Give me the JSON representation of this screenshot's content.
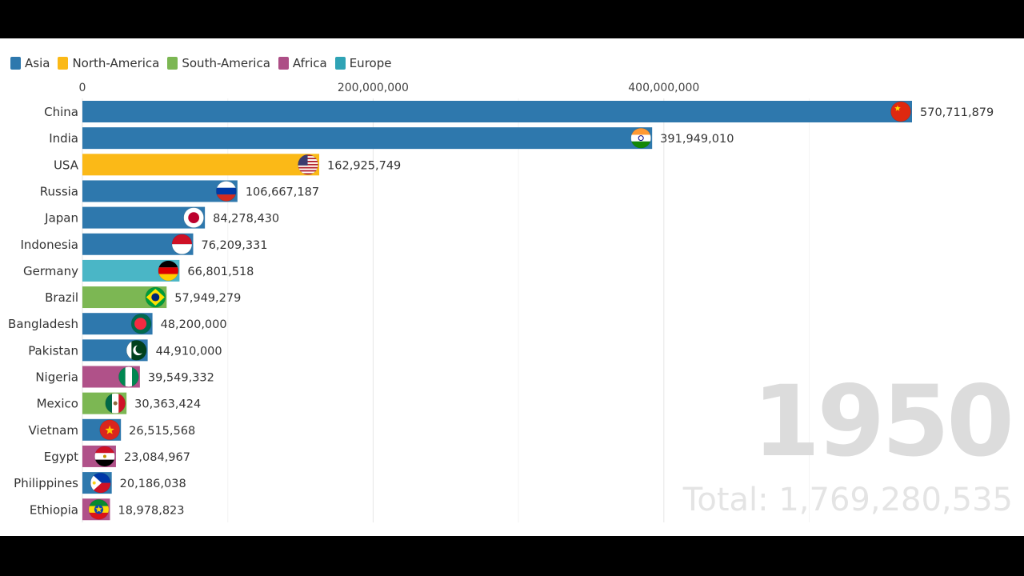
{
  "legend": [
    {
      "name": "Asia",
      "color": "#2e78ad"
    },
    {
      "name": "North-America",
      "color": "#fbb917"
    },
    {
      "name": "South-America",
      "color": "#7cb753"
    },
    {
      "name": "Africa",
      "color": "#ad4e86"
    },
    {
      "name": "Europe",
      "color": "#2fa3b5"
    }
  ],
  "year": "1950",
  "total_text": "Total: 1,769,280,535",
  "chart_data": {
    "type": "bar",
    "orientation": "horizontal",
    "xlim": [
      0,
      570711879
    ],
    "ticks": [
      {
        "value": 0,
        "label": "0"
      },
      {
        "value": 200000000,
        "label": "200,000,000"
      },
      {
        "value": 400000000,
        "label": "400,000,000"
      }
    ],
    "grid": true,
    "legend_position": "top-left",
    "bars": [
      {
        "name": "China",
        "value": 570711879,
        "label": "570,711,879",
        "region": "Asia",
        "color": "#2e78ad",
        "flag": "china-flag-icon"
      },
      {
        "name": "India",
        "value": 391949010,
        "label": "391,949,010",
        "region": "Asia",
        "color": "#2e78ad",
        "flag": "india-flag-icon"
      },
      {
        "name": "USA",
        "value": 162925749,
        "label": "162,925,749",
        "region": "North-America",
        "color": "#fbb917",
        "flag": "usa-flag-icon"
      },
      {
        "name": "Russia",
        "value": 106667187,
        "label": "106,667,187",
        "region": "Asia",
        "color": "#2e78ad",
        "flag": "russia-flag-icon"
      },
      {
        "name": "Japan",
        "value": 84278430,
        "label": "84,278,430",
        "region": "Asia",
        "color": "#2e78ad",
        "flag": "japan-flag-icon"
      },
      {
        "name": "Indonesia",
        "value": 76209331,
        "label": "76,209,331",
        "region": "Asia",
        "color": "#2e78ad",
        "flag": "indonesia-flag-icon"
      },
      {
        "name": "Germany",
        "value": 66801518,
        "label": "66,801,518",
        "region": "Europe",
        "color": "#4ab6c6",
        "flag": "germany-flag-icon"
      },
      {
        "name": "Brazil",
        "value": 57949279,
        "label": "57,949,279",
        "region": "South-America",
        "color": "#7cb753",
        "flag": "brazil-flag-icon"
      },
      {
        "name": "Bangladesh",
        "value": 48200000,
        "label": "48,200,000",
        "region": "Asia",
        "color": "#2e78ad",
        "flag": "bangladesh-flag-icon"
      },
      {
        "name": "Pakistan",
        "value": 44910000,
        "label": "44,910,000",
        "region": "Asia",
        "color": "#2e78ad",
        "flag": "pakistan-flag-icon"
      },
      {
        "name": "Nigeria",
        "value": 39549332,
        "label": "39,549,332",
        "region": "Africa",
        "color": "#b05189",
        "flag": "nigeria-flag-icon"
      },
      {
        "name": "Mexico",
        "value": 30363424,
        "label": "30,363,424",
        "region": "South-America",
        "color": "#7cb753",
        "flag": "mexico-flag-icon"
      },
      {
        "name": "Vietnam",
        "value": 26515568,
        "label": "26,515,568",
        "region": "Asia",
        "color": "#2e78ad",
        "flag": "vietnam-flag-icon"
      },
      {
        "name": "Egypt",
        "value": 23084967,
        "label": "23,084,967",
        "region": "Africa",
        "color": "#b05189",
        "flag": "egypt-flag-icon"
      },
      {
        "name": "Philippines",
        "value": 20186038,
        "label": "20,186,038",
        "region": "Asia",
        "color": "#2e78ad",
        "flag": "philippines-flag-icon"
      },
      {
        "name": "Ethiopia",
        "value": 18978823,
        "label": "18,978,823",
        "region": "Africa",
        "color": "#b05189",
        "flag": "ethiopia-flag-icon"
      }
    ]
  }
}
